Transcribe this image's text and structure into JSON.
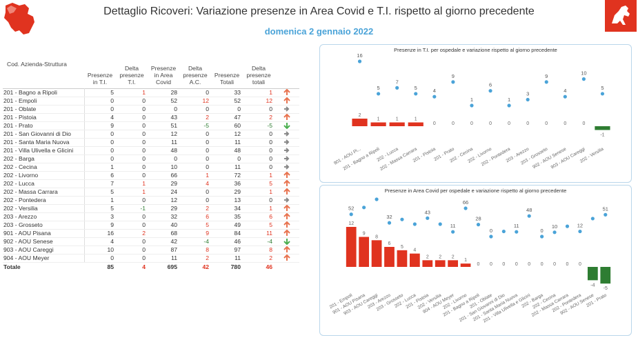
{
  "header": {
    "title": "Dettaglio Ricoveri: Variazione presenze in Area Covid e T.I. rispetto al giorno precedente",
    "date": "domenica 2 gennaio 2022"
  },
  "colors": {
    "positive": "#e0331f",
    "negative": "#2e7d32",
    "dot": "#4aa3d8",
    "title_blue": "#4aa3d8"
  },
  "table": {
    "columns": [
      "Cod. Azienda-Struttura",
      "Presenze in T.I.",
      "Delta presenze T.I.",
      "Presenze in Area Covid",
      "Delta presenze A.C.",
      "Presenze Totali",
      "Delta presenze totali"
    ],
    "rows": [
      {
        "name": "201 - Bagno a Ripoli",
        "ti": "5",
        "dti": "1",
        "ac": "28",
        "dac": "0",
        "tot": "33",
        "dtot": "1",
        "trend": "up"
      },
      {
        "name": "201 - Empoli",
        "ti": "0",
        "dti": "0",
        "ac": "52",
        "dac": "12",
        "tot": "52",
        "dtot": "12",
        "trend": "up"
      },
      {
        "name": "201 - Oblate",
        "ti": "0",
        "dti": "0",
        "ac": "0",
        "dac": "0",
        "tot": "0",
        "dtot": "0",
        "trend": "flat"
      },
      {
        "name": "201 - Pistoia",
        "ti": "4",
        "dti": "0",
        "ac": "43",
        "dac": "2",
        "tot": "47",
        "dtot": "2",
        "trend": "up"
      },
      {
        "name": "201 - Prato",
        "ti": "9",
        "dti": "0",
        "ac": "51",
        "dac": "-5",
        "tot": "60",
        "dtot": "-5",
        "trend": "down"
      },
      {
        "name": "201 - San Giovanni di Dio",
        "ti": "0",
        "dti": "0",
        "ac": "12",
        "dac": "0",
        "tot": "12",
        "dtot": "0",
        "trend": "flat"
      },
      {
        "name": "201 - Santa Maria Nuova",
        "ti": "0",
        "dti": "0",
        "ac": "11",
        "dac": "0",
        "tot": "11",
        "dtot": "0",
        "trend": "flat"
      },
      {
        "name": "201 - Villa Ulivella e Glicini",
        "ti": "0",
        "dti": "0",
        "ac": "48",
        "dac": "0",
        "tot": "48",
        "dtot": "0",
        "trend": "flat"
      },
      {
        "name": "202 - Barga",
        "ti": "0",
        "dti": "0",
        "ac": "0",
        "dac": "0",
        "tot": "0",
        "dtot": "0",
        "trend": "flat"
      },
      {
        "name": "202 - Cecina",
        "ti": "1",
        "dti": "0",
        "ac": "10",
        "dac": "0",
        "tot": "11",
        "dtot": "0",
        "trend": "flat"
      },
      {
        "name": "202 - Livorno",
        "ti": "6",
        "dti": "0",
        "ac": "66",
        "dac": "1",
        "tot": "72",
        "dtot": "1",
        "trend": "up"
      },
      {
        "name": "202 - Lucca",
        "ti": "7",
        "dti": "1",
        "ac": "29",
        "dac": "4",
        "tot": "36",
        "dtot": "5",
        "trend": "up"
      },
      {
        "name": "202 - Massa Carrara",
        "ti": "5",
        "dti": "1",
        "ac": "24",
        "dac": "0",
        "tot": "29",
        "dtot": "1",
        "trend": "up"
      },
      {
        "name": "202 - Pontedera",
        "ti": "1",
        "dti": "0",
        "ac": "12",
        "dac": "0",
        "tot": "13",
        "dtot": "0",
        "trend": "flat"
      },
      {
        "name": "202 - Versilia",
        "ti": "5",
        "dti": "-1",
        "ac": "29",
        "dac": "2",
        "tot": "34",
        "dtot": "1",
        "trend": "up"
      },
      {
        "name": "203 - Arezzo",
        "ti": "3",
        "dti": "0",
        "ac": "32",
        "dac": "6",
        "tot": "35",
        "dtot": "6",
        "trend": "up"
      },
      {
        "name": "203 - Grosseto",
        "ti": "9",
        "dti": "0",
        "ac": "40",
        "dac": "5",
        "tot": "49",
        "dtot": "5",
        "trend": "up"
      },
      {
        "name": "901 - AOU Pisana",
        "ti": "16",
        "dti": "2",
        "ac": "68",
        "dac": "9",
        "tot": "84",
        "dtot": "11",
        "trend": "up"
      },
      {
        "name": "902 - AOU Senese",
        "ti": "4",
        "dti": "0",
        "ac": "42",
        "dac": "-4",
        "tot": "46",
        "dtot": "-4",
        "trend": "down"
      },
      {
        "name": "903 - AOU Careggi",
        "ti": "10",
        "dti": "0",
        "ac": "87",
        "dac": "8",
        "tot": "97",
        "dtot": "8",
        "trend": "up"
      },
      {
        "name": "904 - AOU Meyer",
        "ti": "0",
        "dti": "0",
        "ac": "11",
        "dac": "2",
        "tot": "11",
        "dtot": "2",
        "trend": "up"
      }
    ],
    "total": {
      "name": "Totale",
      "ti": "85",
      "dti": "4",
      "ac": "695",
      "dac": "42",
      "tot": "780",
      "dtot": "46"
    }
  },
  "chart_data": [
    {
      "type": "bar",
      "title": "Presenze in T.I. per ospedale e variazione rispetto al giorno precedente",
      "categories": [
        "901 - AOU Pi...",
        "201 - Bagno a Ripoli",
        "202 - Lucca",
        "202 - Massa Carrara",
        "201 - Pistoia",
        "201 - Prato",
        "202 - Cecina",
        "202 - Livorno",
        "202 - Pontedera",
        "203 - Arezzo",
        "203 - Grosseto",
        "902 - AOU Senese",
        "903 - AOU Careggi",
        "202 - Versilia"
      ],
      "series": [
        {
          "type": "bar",
          "values": [
            2,
            1,
            1,
            1,
            0,
            0,
            0,
            0,
            0,
            0,
            0,
            0,
            0,
            -1
          ]
        },
        {
          "type": "scatter",
          "values": [
            16,
            5,
            7,
            5,
            4,
            9,
            1,
            6,
            1,
            3,
            9,
            4,
            10,
            5
          ]
        }
      ],
      "bar_range": [
        -1,
        2
      ],
      "dot_range": [
        1,
        16
      ]
    },
    {
      "type": "bar",
      "title": "Presenze in Area Covid per ospedale e variazione rispetto al giorno precedente",
      "categories": [
        "201 - Empoli",
        "901 - AOU Pisana",
        "903 - AOU Careggi",
        "203 - Arezzo",
        "203 - Grosseto",
        "202 - Lucca",
        "201 - Pistoia",
        "202 - Versilia",
        "904 - AOU Meyer",
        "202 - Livorno",
        "201 - Bagno a Ripoli",
        "201 - Oblate",
        "201 - San Giovanni di Dio",
        "201 - Santa Maria Nuova",
        "201 - Villa Ulivella e Glicini",
        "202 - Barga",
        "202 - Cecina",
        "202 - Massa Carrara",
        "202 - Pontedera",
        "902 - AOU Senese",
        "201 - Prato"
      ],
      "series": [
        {
          "type": "bar",
          "values": [
            12,
            9,
            8,
            6,
            5,
            4,
            2,
            2,
            2,
            1,
            0,
            0,
            0,
            0,
            0,
            0,
            0,
            0,
            0,
            -4,
            -5
          ]
        },
        {
          "type": "scatter",
          "values": [
            52,
            68,
            87,
            32,
            40,
            29,
            43,
            29,
            11,
            66,
            28,
            0,
            12,
            11,
            48,
            0,
            10,
            24,
            12,
            42,
            51
          ]
        }
      ],
      "dot_labels_shown": [
        "52",
        "",
        "",
        "32",
        "",
        "",
        "43",
        "",
        "11",
        "66",
        "28",
        "0",
        "",
        "11",
        "48",
        "0",
        "10",
        "",
        "12",
        "",
        "51"
      ],
      "bar_range": [
        -5,
        12
      ],
      "dot_range": [
        0,
        87
      ]
    }
  ]
}
